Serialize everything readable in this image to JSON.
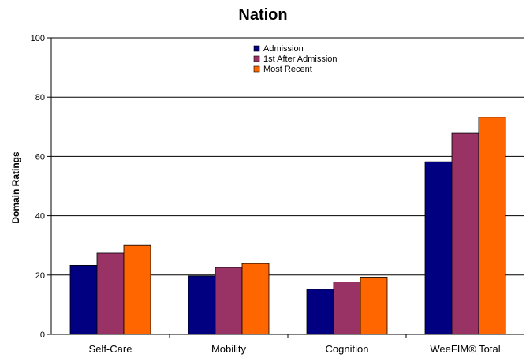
{
  "chart_data": {
    "type": "bar",
    "title": "Nation",
    "xlabel": "",
    "ylabel": "Domain Ratings",
    "categories": [
      "Self-Care",
      "Mobility",
      "Cognition",
      "WeeFIM® Total"
    ],
    "series": [
      {
        "name": "Admission",
        "color": "#000080",
        "values": [
          23.3,
          19.7,
          15.2,
          58.2
        ]
      },
      {
        "name": "1st After Admission",
        "color": "#993366",
        "values": [
          27.4,
          22.6,
          17.7,
          67.8
        ]
      },
      {
        "name": "Most Recent",
        "color": "#FF6600",
        "values": [
          30.0,
          23.9,
          19.3,
          73.2
        ]
      }
    ],
    "ylim": [
      0,
      100
    ],
    "yticks": [
      0,
      20,
      40,
      60,
      80,
      100
    ],
    "grid": true,
    "legend_position": "top-center"
  }
}
